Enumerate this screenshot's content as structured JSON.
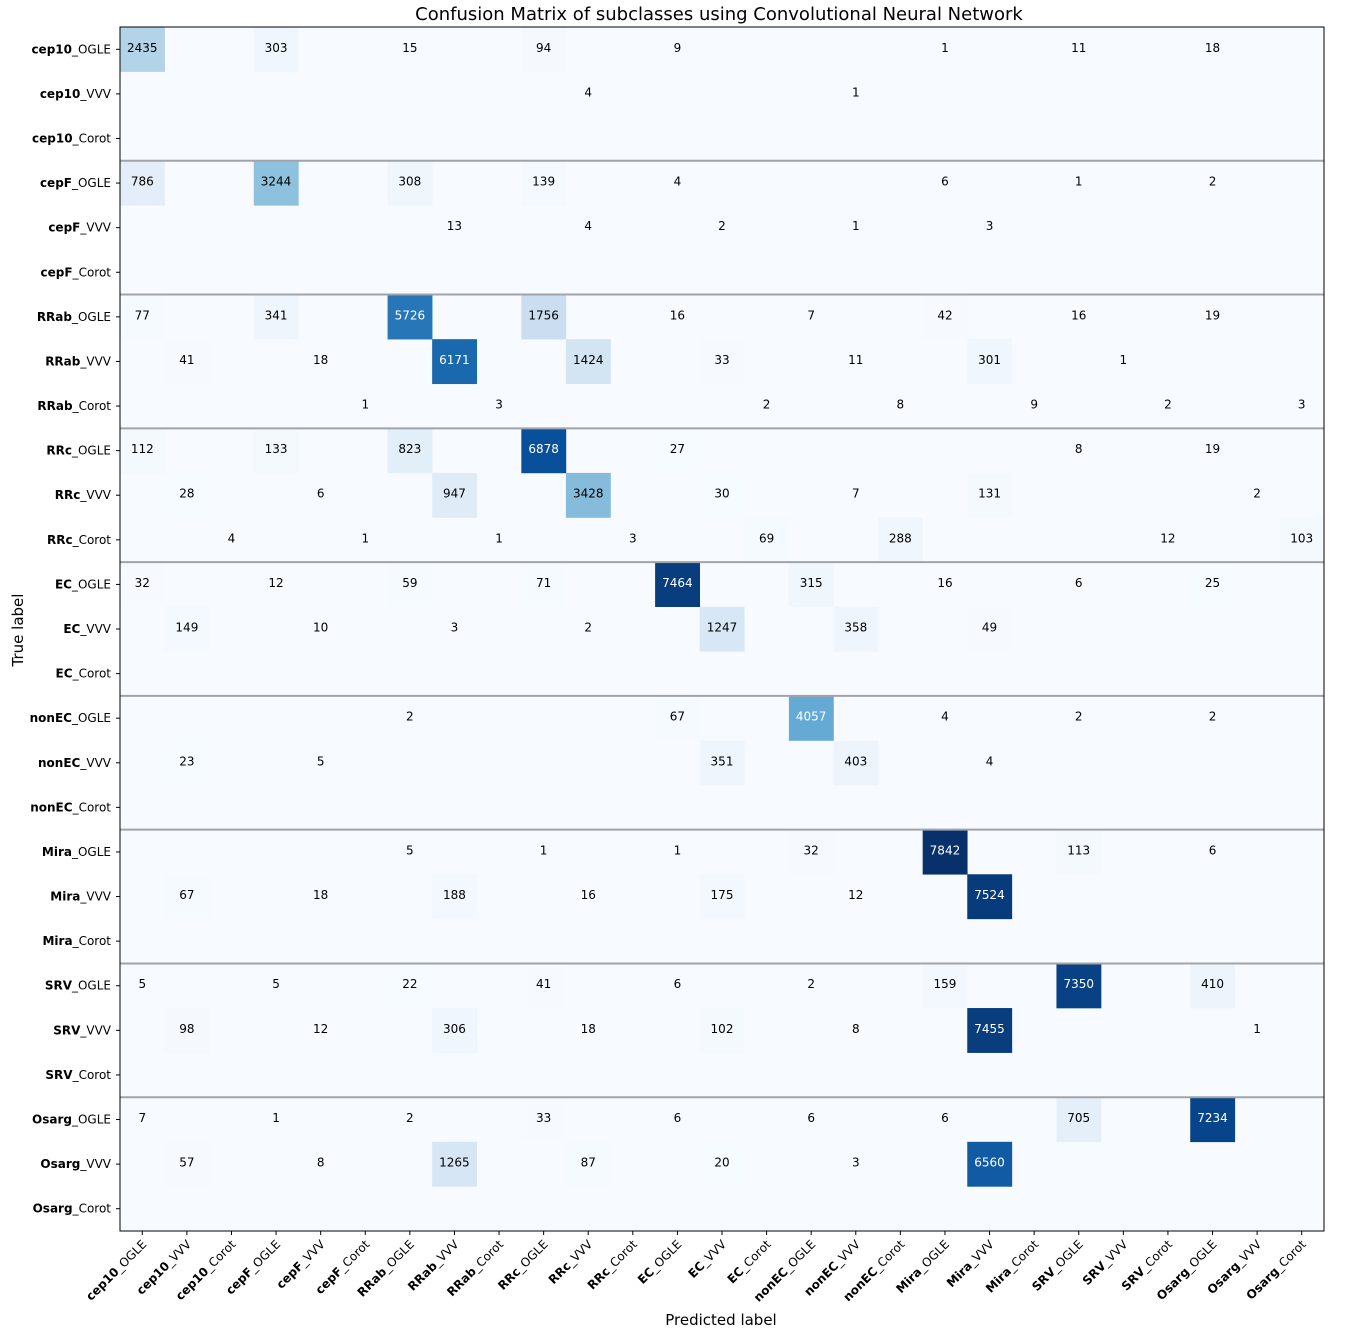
{
  "chart_data": {
    "type": "heatmap",
    "title": "Confusion Matrix of subclasses using Convolutional Neural Network",
    "xlabel": "Predicted label",
    "ylabel": "True label",
    "colormap": "Blues",
    "colors": {
      "low": "#f7fbff",
      "high": "#08306b",
      "frame": "#000000",
      "separator": "#a0a4a8"
    },
    "vmax": 7842,
    "labels": [
      {
        "bold": "cep10",
        "suffix": "_OGLE"
      },
      {
        "bold": "cep10",
        "suffix": "_VVV"
      },
      {
        "bold": "cep10",
        "suffix": "_Corot"
      },
      {
        "bold": "cepF",
        "suffix": "_OGLE"
      },
      {
        "bold": "cepF",
        "suffix": "_VVV"
      },
      {
        "bold": "cepF",
        "suffix": "_Corot"
      },
      {
        "bold": "RRab",
        "suffix": "_OGLE"
      },
      {
        "bold": "RRab",
        "suffix": "_VVV"
      },
      {
        "bold": "RRab",
        "suffix": "_Corot"
      },
      {
        "bold": "RRc",
        "suffix": "_OGLE"
      },
      {
        "bold": "RRc",
        "suffix": "_VVV"
      },
      {
        "bold": "RRc",
        "suffix": "_Corot"
      },
      {
        "bold": "EC",
        "suffix": "_OGLE"
      },
      {
        "bold": "EC",
        "suffix": "_VVV"
      },
      {
        "bold": "EC",
        "suffix": "_Corot"
      },
      {
        "bold": "nonEC",
        "suffix": "_OGLE"
      },
      {
        "bold": "nonEC",
        "suffix": "_VVV"
      },
      {
        "bold": "nonEC",
        "suffix": "_Corot"
      },
      {
        "bold": "Mira",
        "suffix": "_OGLE"
      },
      {
        "bold": "Mira",
        "suffix": "_VVV"
      },
      {
        "bold": "Mira",
        "suffix": "_Corot"
      },
      {
        "bold": "SRV",
        "suffix": "_OGLE"
      },
      {
        "bold": "SRV",
        "suffix": "_VVV"
      },
      {
        "bold": "SRV",
        "suffix": "_Corot"
      },
      {
        "bold": "Osarg",
        "suffix": "_OGLE"
      },
      {
        "bold": "Osarg",
        "suffix": "_VVV"
      },
      {
        "bold": "Osarg",
        "suffix": "_Corot"
      }
    ],
    "cells": [
      [
        0,
        0,
        2435
      ],
      [
        0,
        3,
        303
      ],
      [
        0,
        6,
        15
      ],
      [
        0,
        9,
        94
      ],
      [
        0,
        12,
        9
      ],
      [
        0,
        18,
        1
      ],
      [
        0,
        21,
        11
      ],
      [
        0,
        24,
        18
      ],
      [
        1,
        10,
        4
      ],
      [
        1,
        16,
        1
      ],
      [
        3,
        0,
        786
      ],
      [
        3,
        3,
        3244
      ],
      [
        3,
        6,
        308
      ],
      [
        3,
        9,
        139
      ],
      [
        3,
        12,
        4
      ],
      [
        3,
        18,
        6
      ],
      [
        3,
        21,
        1
      ],
      [
        3,
        24,
        2
      ],
      [
        4,
        7,
        13
      ],
      [
        4,
        10,
        4
      ],
      [
        4,
        13,
        2
      ],
      [
        4,
        16,
        1
      ],
      [
        4,
        19,
        3
      ],
      [
        6,
        0,
        77
      ],
      [
        6,
        3,
        341
      ],
      [
        6,
        6,
        5726
      ],
      [
        6,
        9,
        1756
      ],
      [
        6,
        12,
        16
      ],
      [
        6,
        15,
        7
      ],
      [
        6,
        18,
        42
      ],
      [
        6,
        21,
        16
      ],
      [
        6,
        24,
        19
      ],
      [
        7,
        1,
        41
      ],
      [
        7,
        4,
        18
      ],
      [
        7,
        7,
        6171
      ],
      [
        7,
        10,
        1424
      ],
      [
        7,
        13,
        33
      ],
      [
        7,
        16,
        11
      ],
      [
        7,
        19,
        301
      ],
      [
        7,
        22,
        1
      ],
      [
        8,
        5,
        1
      ],
      [
        8,
        8,
        3
      ],
      [
        8,
        14,
        2
      ],
      [
        8,
        17,
        8
      ],
      [
        8,
        20,
        9
      ],
      [
        8,
        23,
        2
      ],
      [
        8,
        26,
        3
      ],
      [
        9,
        0,
        112
      ],
      [
        9,
        3,
        133
      ],
      [
        9,
        6,
        823
      ],
      [
        9,
        9,
        6878
      ],
      [
        9,
        12,
        27
      ],
      [
        9,
        21,
        8
      ],
      [
        9,
        24,
        19
      ],
      [
        10,
        1,
        28
      ],
      [
        10,
        4,
        6
      ],
      [
        10,
        7,
        947
      ],
      [
        10,
        10,
        3428
      ],
      [
        10,
        13,
        30
      ],
      [
        10,
        16,
        7
      ],
      [
        10,
        19,
        131
      ],
      [
        10,
        25,
        2
      ],
      [
        11,
        2,
        4
      ],
      [
        11,
        5,
        1
      ],
      [
        11,
        8,
        1
      ],
      [
        11,
        11,
        3
      ],
      [
        11,
        14,
        69
      ],
      [
        11,
        17,
        288
      ],
      [
        11,
        23,
        12
      ],
      [
        11,
        26,
        103
      ],
      [
        12,
        0,
        32
      ],
      [
        12,
        3,
        12
      ],
      [
        12,
        6,
        59
      ],
      [
        12,
        9,
        71
      ],
      [
        12,
        12,
        7464
      ],
      [
        12,
        15,
        315
      ],
      [
        12,
        18,
        16
      ],
      [
        12,
        21,
        6
      ],
      [
        12,
        24,
        25
      ],
      [
        13,
        1,
        149
      ],
      [
        13,
        4,
        10
      ],
      [
        13,
        7,
        3
      ],
      [
        13,
        10,
        2
      ],
      [
        13,
        13,
        1247
      ],
      [
        13,
        16,
        358
      ],
      [
        13,
        19,
        49
      ],
      [
        15,
        6,
        2
      ],
      [
        15,
        12,
        67
      ],
      [
        15,
        15,
        4057
      ],
      [
        15,
        18,
        4
      ],
      [
        15,
        21,
        2
      ],
      [
        15,
        24,
        2
      ],
      [
        16,
        1,
        23
      ],
      [
        16,
        4,
        5
      ],
      [
        16,
        13,
        351
      ],
      [
        16,
        16,
        403
      ],
      [
        16,
        19,
        4
      ],
      [
        18,
        6,
        5
      ],
      [
        18,
        9,
        1
      ],
      [
        18,
        12,
        1
      ],
      [
        18,
        15,
        32
      ],
      [
        18,
        18,
        7842
      ],
      [
        18,
        21,
        113
      ],
      [
        18,
        24,
        6
      ],
      [
        19,
        1,
        67
      ],
      [
        19,
        4,
        18
      ],
      [
        19,
        7,
        188
      ],
      [
        19,
        10,
        16
      ],
      [
        19,
        13,
        175
      ],
      [
        19,
        16,
        12
      ],
      [
        19,
        19,
        7524
      ],
      [
        21,
        0,
        5
      ],
      [
        21,
        3,
        5
      ],
      [
        21,
        6,
        22
      ],
      [
        21,
        9,
        41
      ],
      [
        21,
        12,
        6
      ],
      [
        21,
        15,
        2
      ],
      [
        21,
        18,
        159
      ],
      [
        21,
        21,
        7350
      ],
      [
        21,
        24,
        410
      ],
      [
        22,
        1,
        98
      ],
      [
        22,
        4,
        12
      ],
      [
        22,
        7,
        306
      ],
      [
        22,
        10,
        18
      ],
      [
        22,
        13,
        102
      ],
      [
        22,
        16,
        8
      ],
      [
        22,
        19,
        7455
      ],
      [
        22,
        25,
        1
      ],
      [
        24,
        0,
        7
      ],
      [
        24,
        3,
        1
      ],
      [
        24,
        6,
        2
      ],
      [
        24,
        9,
        33
      ],
      [
        24,
        12,
        6
      ],
      [
        24,
        15,
        6
      ],
      [
        24,
        18,
        6
      ],
      [
        24,
        21,
        705
      ],
      [
        24,
        24,
        7234
      ],
      [
        25,
        1,
        57
      ],
      [
        25,
        4,
        8
      ],
      [
        25,
        7,
        1265
      ],
      [
        25,
        10,
        87
      ],
      [
        25,
        13,
        20
      ],
      [
        25,
        16,
        3
      ],
      [
        25,
        19,
        6560
      ]
    ]
  }
}
